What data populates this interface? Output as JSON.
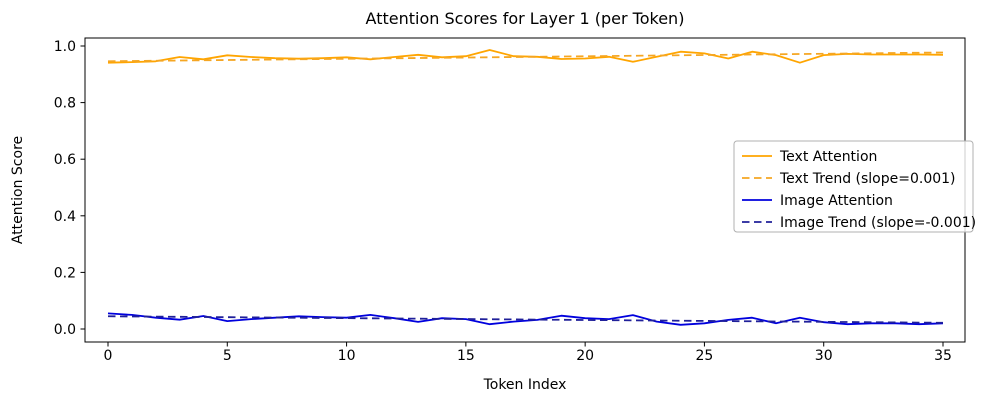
{
  "figure": {
    "title": "Attention Scores for Layer 1 (per Token)",
    "background_color": "#ffffff",
    "axis_color": "#000000"
  },
  "chart_data": {
    "type": "line",
    "title": "Attention Scores for Layer 1 (per Token)",
    "xlabel": "Token Index",
    "ylabel": "Attention Score",
    "xlim": [
      -1.0,
      36.0
    ],
    "ylim": [
      -0.05,
      1.03
    ],
    "grid": false,
    "legend_position": "center right",
    "x_ticks": [
      0,
      5,
      10,
      15,
      20,
      25,
      30,
      35
    ],
    "x_tick_labels": [
      "0",
      "5",
      "10",
      "15",
      "20",
      "25",
      "30",
      "35"
    ],
    "y_ticks": [
      0.0,
      0.2,
      0.4,
      0.6,
      0.8,
      1.0
    ],
    "y_tick_labels": [
      "0.0",
      "0.2",
      "0.4",
      "0.6",
      "0.8",
      "1.0"
    ],
    "x": [
      0,
      1,
      2,
      3,
      4,
      5,
      6,
      7,
      8,
      9,
      10,
      11,
      12,
      13,
      14,
      15,
      16,
      17,
      18,
      19,
      20,
      21,
      22,
      23,
      24,
      25,
      26,
      27,
      28,
      29,
      30,
      31,
      32,
      33,
      34,
      35
    ],
    "series": [
      {
        "name": "Text Attention",
        "style": "solid",
        "color": "#ffa500",
        "values": [
          0.941,
          0.943,
          0.946,
          0.961,
          0.953,
          0.967,
          0.961,
          0.957,
          0.955,
          0.957,
          0.96,
          0.953,
          0.961,
          0.969,
          0.96,
          0.964,
          0.986,
          0.964,
          0.962,
          0.954,
          0.956,
          0.962,
          0.944,
          0.962,
          0.98,
          0.974,
          0.956,
          0.98,
          0.968,
          0.941,
          0.968,
          0.972,
          0.97,
          0.97,
          0.97,
          0.969
        ]
      },
      {
        "name": "Text Trend (slope=0.001)",
        "style": "dashed",
        "color": "#f5a623",
        "trend": {
          "start": 0.946,
          "end": 0.977,
          "slope_label": "0.001"
        }
      },
      {
        "name": "Image Attention",
        "style": "solid",
        "color": "#0000dd",
        "values": [
          0.055,
          0.05,
          0.04,
          0.033,
          0.046,
          0.028,
          0.035,
          0.04,
          0.045,
          0.042,
          0.04,
          0.05,
          0.038,
          0.025,
          0.038,
          0.035,
          0.017,
          0.026,
          0.032,
          0.047,
          0.038,
          0.035,
          0.049,
          0.026,
          0.015,
          0.02,
          0.032,
          0.04,
          0.02,
          0.04,
          0.024,
          0.017,
          0.02,
          0.02,
          0.017,
          0.02
        ]
      },
      {
        "name": "Image Trend (slope=-0.001)",
        "style": "dashed",
        "color": "#20209a",
        "trend": {
          "start": 0.045,
          "end": 0.022,
          "slope_label": "-0.001"
        }
      }
    ]
  },
  "legend": {
    "entries": [
      {
        "label": "Text Attention"
      },
      {
        "label": "Text Trend (slope=0.001)"
      },
      {
        "label": "Image Attention"
      },
      {
        "label": "Image Trend (slope=-0.001)"
      }
    ]
  }
}
